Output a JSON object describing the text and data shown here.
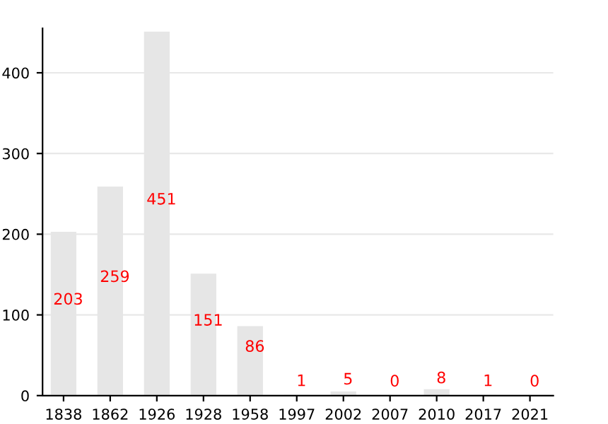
{
  "chart_data": {
    "type": "bar",
    "categories": [
      "1838",
      "1862",
      "1926",
      "1928",
      "1958",
      "1997",
      "2002",
      "2007",
      "2010",
      "2017",
      "2021"
    ],
    "values": [
      203,
      259,
      451,
      151,
      86,
      1,
      5,
      0,
      8,
      1,
      0
    ],
    "color": "#e6e6e6",
    "ylim": [
      0,
      455
    ],
    "yticks": [
      0,
      100,
      200,
      300,
      400
    ],
    "grid": "y",
    "data_labels": true
  }
}
